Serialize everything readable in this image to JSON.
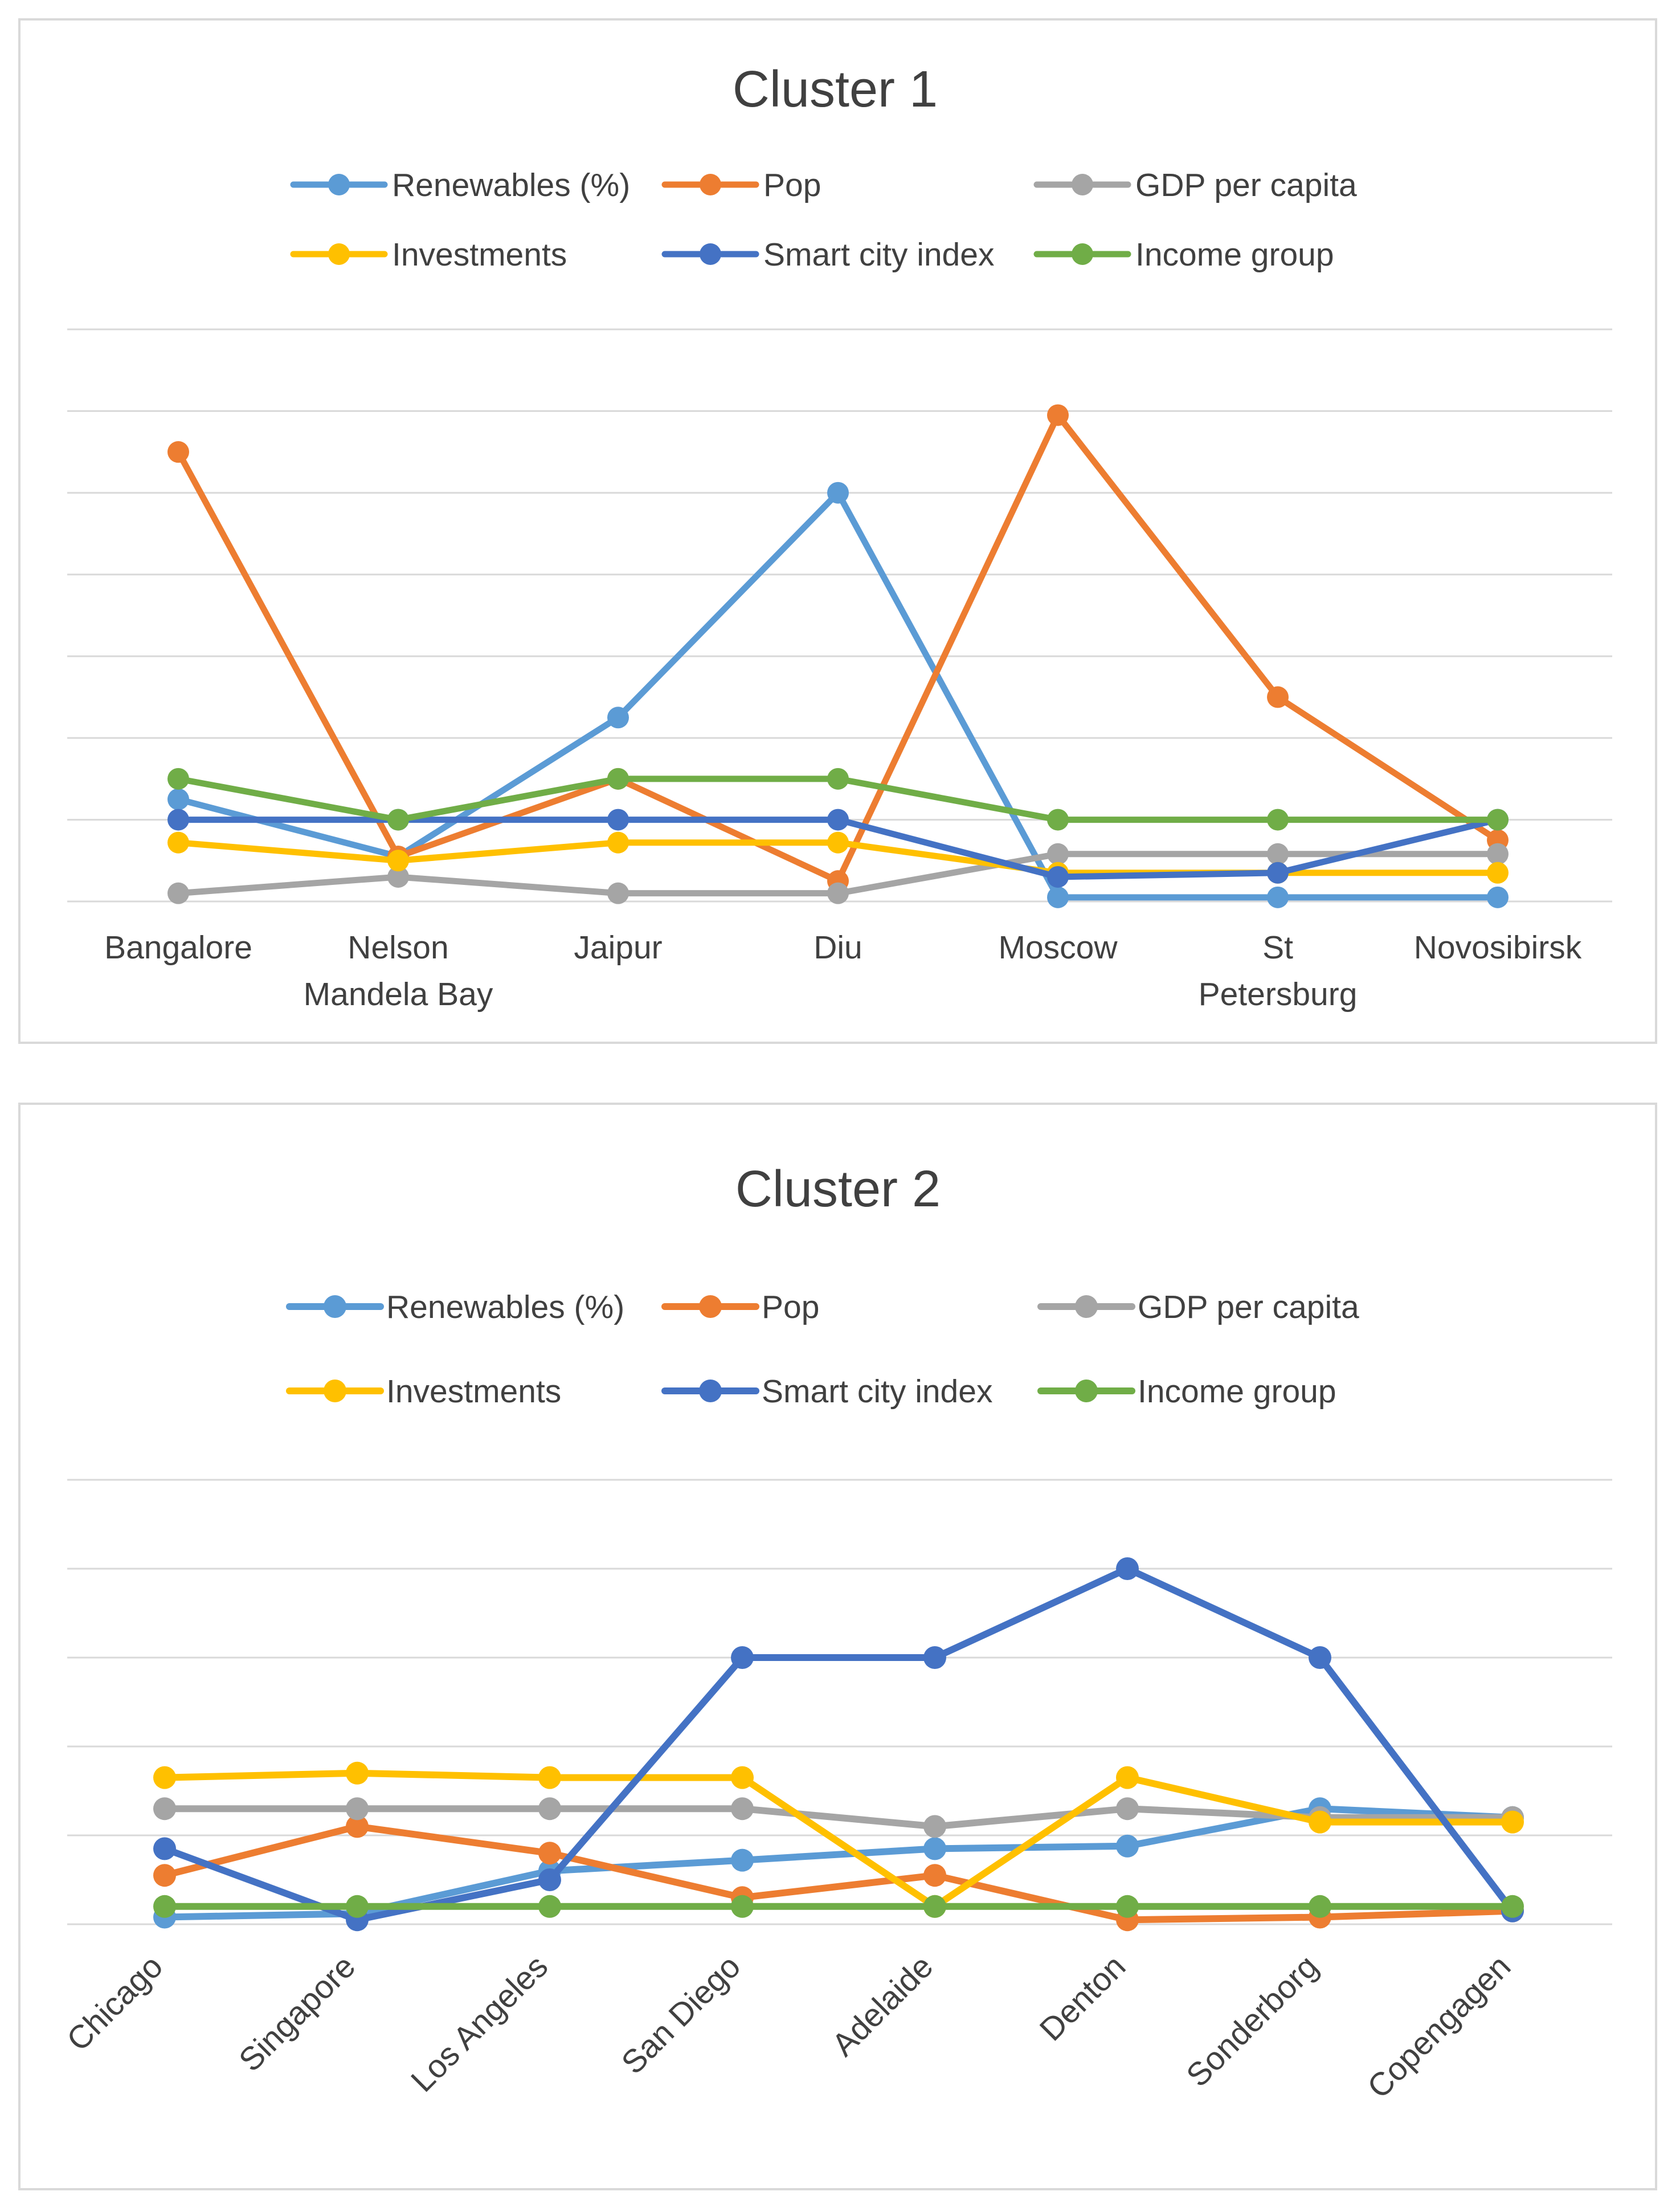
{
  "chart_data": [
    {
      "type": "line",
      "title": "Cluster 1",
      "categories": [
        "Bangalore",
        "Nelson Mandela Bay",
        "Jaipur",
        "Diu",
        "Moscow",
        "St Petersburg",
        "Novosibirsk"
      ],
      "category_lines": [
        [
          "Bangalore"
        ],
        [
          "Nelson",
          "Mandela Bay"
        ],
        [
          "Jaipur"
        ],
        [
          "Diu"
        ],
        [
          "Moscow"
        ],
        [
          "St",
          "Petersburg"
        ],
        [
          "Novosibirsk"
        ]
      ],
      "ylim": [
        0,
        7
      ],
      "y_gridlines": 7,
      "y_tick_labels_visible": false,
      "legend_position": "top",
      "series": [
        {
          "name": "Renewables (%)",
          "color": "#5B9BD5",
          "values": [
            1.25,
            0.55,
            2.25,
            5.0,
            0.05,
            0.05,
            0.05
          ]
        },
        {
          "name": "Pop",
          "color": "#ED7D31",
          "values": [
            5.5,
            0.55,
            1.5,
            0.25,
            5.95,
            2.5,
            0.75
          ]
        },
        {
          "name": "GDP per capita",
          "color": "#A5A5A5",
          "values": [
            0.1,
            0.3,
            0.1,
            0.1,
            0.58,
            0.58,
            0.58
          ]
        },
        {
          "name": "Investments",
          "color": "#FFC000",
          "values": [
            0.72,
            0.5,
            0.72,
            0.72,
            0.35,
            0.35,
            0.35
          ]
        },
        {
          "name": "Smart city index",
          "color": "#4472C4",
          "values": [
            1.0,
            1.0,
            1.0,
            1.0,
            0.3,
            0.35,
            1.0
          ]
        },
        {
          "name": "Income group",
          "color": "#70AD47",
          "values": [
            1.5,
            1.0,
            1.5,
            1.5,
            1.0,
            1.0,
            1.0
          ]
        }
      ]
    },
    {
      "type": "line",
      "title": "Cluster 2",
      "categories": [
        "Chicago",
        "Singapore",
        "Los Angeles",
        "San Diego",
        "Adelaide",
        "Denton",
        "Sonderborg",
        "Copengagen"
      ],
      "ylim": [
        0,
        5
      ],
      "y_gridlines": 5,
      "y_tick_labels_visible": false,
      "legend_position": "top",
      "x_tick_rotation_deg": -45,
      "series": [
        {
          "name": "Renewables (%)",
          "color": "#5B9BD5",
          "values": [
            0.08,
            0.12,
            0.6,
            0.72,
            0.85,
            0.88,
            1.3,
            1.2
          ]
        },
        {
          "name": "Pop",
          "color": "#ED7D31",
          "values": [
            0.55,
            1.1,
            0.8,
            0.3,
            0.55,
            0.05,
            0.08,
            0.15
          ]
        },
        {
          "name": "GDP per capita",
          "color": "#A5A5A5",
          "values": [
            1.3,
            1.3,
            1.3,
            1.3,
            1.1,
            1.3,
            1.2,
            1.2
          ]
        },
        {
          "name": "Investments",
          "color": "#FFC000",
          "values": [
            1.65,
            1.7,
            1.65,
            1.65,
            0.2,
            1.65,
            1.15,
            1.15
          ]
        },
        {
          "name": "Smart city index",
          "color": "#4472C4",
          "values": [
            0.85,
            0.05,
            0.5,
            3.0,
            3.0,
            4.0,
            3.0,
            0.15
          ]
        },
        {
          "name": "Income group",
          "color": "#70AD47",
          "values": [
            0.2,
            0.2,
            0.2,
            0.2,
            0.2,
            0.2,
            0.2,
            0.2
          ]
        }
      ]
    }
  ]
}
